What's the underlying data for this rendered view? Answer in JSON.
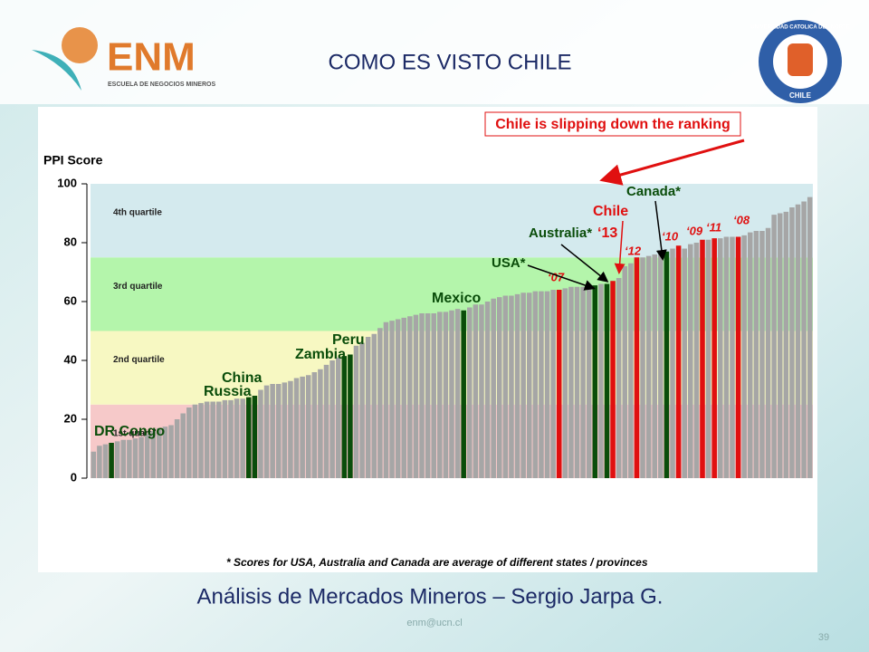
{
  "header": {
    "logo_text": "ENM",
    "logo_subtitle": "ESCUELA DE NEGOCIOS MINEROS",
    "title": "COMO ES VISTO CHILE",
    "seal_top": "UNIVERSIDAD CATOLICA DEL NORTE",
    "seal_bottom": "CHILE"
  },
  "chart_data": {
    "type": "bar",
    "y_label": "PPI Score",
    "headline": "Chile is slipping down the ranking",
    "note": "* Scores for USA, Australia and Canada are average of different states / provinces",
    "ylim": [
      0,
      100
    ],
    "yticks": [
      0,
      20,
      40,
      60,
      80,
      100
    ],
    "bands": [
      {
        "label": "1st quartile",
        "from": 0,
        "to": 25,
        "color": "#f6c9c9"
      },
      {
        "label": "2nd quartile",
        "from": 25,
        "to": 50,
        "color": "#f7f8c2"
      },
      {
        "label": "3rd quartile",
        "from": 50,
        "to": 75,
        "color": "#b4f5ab"
      },
      {
        "label": "4th quartile",
        "from": 75,
        "to": 100,
        "color": "#d4eaee"
      }
    ],
    "values": [
      9,
      11,
      11.5,
      12,
      12.5,
      13,
      13,
      13.5,
      14,
      15,
      16,
      17,
      17.5,
      18,
      20,
      22,
      24,
      25,
      25.5,
      26,
      26,
      26,
      26.5,
      26.5,
      27,
      27,
      27.5,
      28,
      30,
      31.5,
      32,
      32,
      32.5,
      33,
      34,
      34.5,
      35,
      36,
      37,
      38.5,
      40,
      41,
      41.5,
      42,
      45,
      46,
      48,
      49,
      51,
      53,
      53.5,
      54,
      54.5,
      55,
      55.5,
      56,
      56,
      56,
      56.5,
      56.5,
      57,
      57.5,
      57,
      58,
      59,
      59,
      60,
      61,
      61.5,
      62,
      62,
      62.5,
      63,
      63,
      63.5,
      63.5,
      63.5,
      64,
      64,
      64.5,
      65,
      65,
      65,
      65.5,
      65.5,
      66,
      66,
      67,
      68,
      72,
      73,
      75,
      75,
      75.5,
      76,
      76.5,
      77,
      78,
      79,
      78,
      79.5,
      80,
      81,
      81,
      81.5,
      81.5,
      82,
      82,
      82,
      82.5,
      83.5,
      84,
      84,
      85,
      89.5,
      90,
      90.5,
      92,
      93,
      94,
      95.5
    ],
    "colors": [
      "#a6a6a6",
      "#a6a6a6",
      "#a6a6a6",
      "#0a4d0a",
      "#a6a6a6",
      "#a6a6a6",
      "#a6a6a6",
      "#a6a6a6",
      "#a6a6a6",
      "#a6a6a6",
      "#a6a6a6",
      "#a6a6a6",
      "#a6a6a6",
      "#a6a6a6",
      "#a6a6a6",
      "#a6a6a6",
      "#a6a6a6",
      "#a6a6a6",
      "#a6a6a6",
      "#a6a6a6",
      "#a6a6a6",
      "#a6a6a6",
      "#a6a6a6",
      "#a6a6a6",
      "#a6a6a6",
      "#a6a6a6",
      "#0a4d0a",
      "#0a4d0a",
      "#a6a6a6",
      "#a6a6a6",
      "#a6a6a6",
      "#a6a6a6",
      "#a6a6a6",
      "#a6a6a6",
      "#a6a6a6",
      "#a6a6a6",
      "#a6a6a6",
      "#a6a6a6",
      "#a6a6a6",
      "#a6a6a6",
      "#a6a6a6",
      "#a6a6a6",
      "#0a4d0a",
      "#0a4d0a",
      "#a6a6a6",
      "#a6a6a6",
      "#a6a6a6",
      "#a6a6a6",
      "#a6a6a6",
      "#a6a6a6",
      "#a6a6a6",
      "#a6a6a6",
      "#a6a6a6",
      "#a6a6a6",
      "#a6a6a6",
      "#a6a6a6",
      "#a6a6a6",
      "#a6a6a6",
      "#a6a6a6",
      "#a6a6a6",
      "#a6a6a6",
      "#a6a6a6",
      "#0a4d0a",
      "#a6a6a6",
      "#a6a6a6",
      "#a6a6a6",
      "#a6a6a6",
      "#a6a6a6",
      "#a6a6a6",
      "#a6a6a6",
      "#a6a6a6",
      "#a6a6a6",
      "#a6a6a6",
      "#a6a6a6",
      "#a6a6a6",
      "#a6a6a6",
      "#a6a6a6",
      "#a6a6a6",
      "#e01010",
      "#a6a6a6",
      "#a6a6a6",
      "#a6a6a6",
      "#a6a6a6",
      "#a6a6a6",
      "#0a4d0a",
      "#a6a6a6",
      "#0a4d0a",
      "#e01010",
      "#a6a6a6",
      "#a6a6a6",
      "#a6a6a6",
      "#e01010",
      "#a6a6a6",
      "#a6a6a6",
      "#a6a6a6",
      "#a6a6a6",
      "#0a4d0a",
      "#a6a6a6",
      "#e01010",
      "#a6a6a6",
      "#a6a6a6",
      "#a6a6a6",
      "#e01010",
      "#a6a6a6",
      "#e01010",
      "#a6a6a6",
      "#a6a6a6",
      "#a6a6a6",
      "#e01010",
      "#a6a6a6",
      "#a6a6a6",
      "#a6a6a6",
      "#a6a6a6",
      "#a6a6a6",
      "#a6a6a6",
      "#a6a6a6",
      "#a6a6a6",
      "#a6a6a6",
      "#a6a6a6",
      "#a6a6a6",
      "#a6a6a6"
    ],
    "annotations": [
      "DR Congo",
      "Russia",
      "China",
      "Zambia",
      "Peru",
      "Mexico",
      "USA*",
      "‘07",
      "Australia*",
      "‘13",
      "Chile",
      "Canada*",
      "‘12",
      "‘10",
      "‘09",
      "‘11",
      "‘08"
    ]
  },
  "footer": {
    "subtitle": "Análisis  de Mercados Mineros – Sergio Jarpa G.",
    "email": "enm@ucn.cl",
    "page": "39"
  }
}
